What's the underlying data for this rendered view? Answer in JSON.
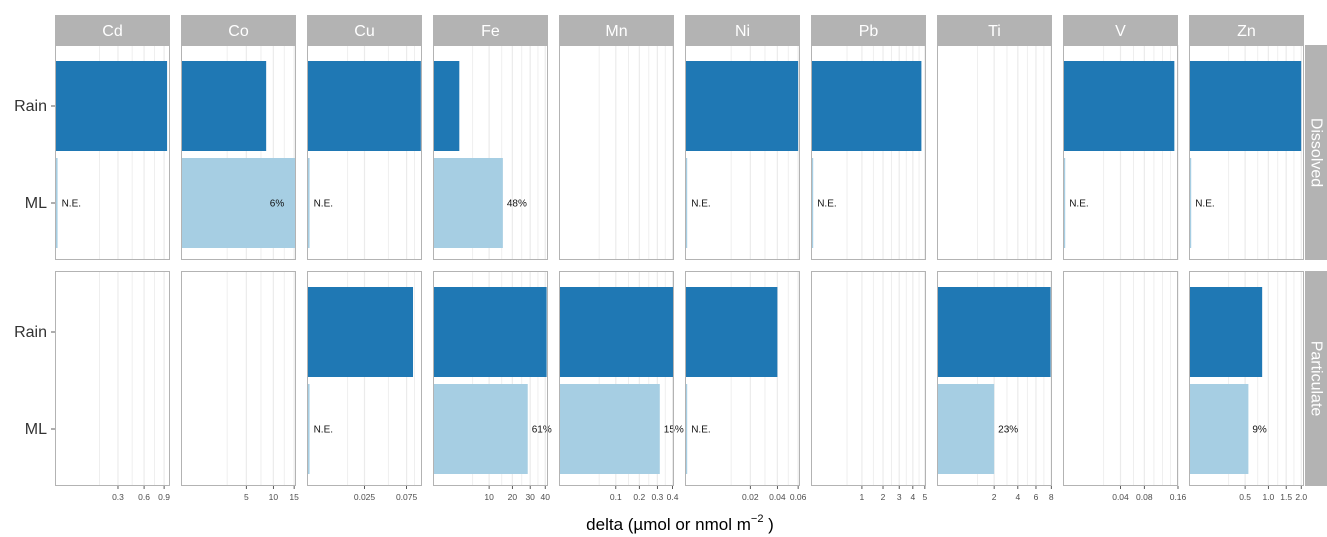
{
  "chart_data": {
    "type": "bar",
    "orientation": "horizontal",
    "facets": {
      "columns": "element",
      "rows": "fraction"
    },
    "x_scale": "sqrt",
    "xlabel_main": "delta (µmol or nmol m",
    "xlabel_sup": "−2",
    "xlabel_end": " )",
    "grid": "vertical",
    "legend": "none",
    "categories": [
      "Rain",
      "ML"
    ],
    "colors": {
      "Rain": "#1f78b4",
      "ML": "#a6cee3",
      "strip": "#b3b3b3",
      "grid": "#ebebeb",
      "panel_border": "#b3b3b3"
    },
    "rows": [
      "Dissolved",
      "Particulate"
    ],
    "columns": [
      {
        "name": "Cd",
        "xlim": [
          0,
          1.0
        ],
        "ticks": [
          0.3,
          0.6,
          0.9
        ],
        "minor": [
          0.15,
          0.45,
          0.75
        ],
        "tick_labels": [
          "0.3",
          "0.6",
          "0.9"
        ],
        "panels": {
          "Dissolved": {
            "Rain": 0.95,
            "ML": 0.0005,
            "ML_label": "N.E."
          },
          "Particulate": null
        }
      },
      {
        "name": "Co",
        "xlim": [
          0,
          15.5
        ],
        "ticks": [
          5,
          10,
          15
        ],
        "minor": [
          2.5,
          7.5,
          12.5
        ],
        "tick_labels": [
          "5",
          "10",
          "15"
        ],
        "panels": {
          "Dissolved": {
            "Rain": 8.5,
            "ML": 15.3,
            "ML_label": "6%",
            "ML_label_inside": true
          },
          "Particulate": null
        }
      },
      {
        "name": "Cu",
        "xlim": [
          0,
          0.1
        ],
        "ticks": [
          0.025,
          0.075
        ],
        "minor": [
          0.0125,
          0.05,
          0.0875
        ],
        "tick_labels": [
          "0.025",
          "0.075"
        ],
        "panels": {
          "Dissolved": {
            "Rain": 0.098,
            "ML": 5e-05,
            "ML_label": "N.E."
          },
          "Particulate": {
            "Rain": 0.085,
            "ML": 5e-05,
            "ML_label": "N.E."
          }
        }
      },
      {
        "name": "Fe",
        "xlim": [
          0,
          42
        ],
        "ticks": [
          10,
          20,
          30,
          40
        ],
        "minor": [
          5,
          15,
          25,
          35
        ],
        "tick_labels": [
          "10",
          "20",
          "30",
          "40"
        ],
        "panels": {
          "Dissolved": {
            "Rain": 2.2,
            "ML": 15.5,
            "ML_label": "48%"
          },
          "Particulate": {
            "Rain": 41,
            "ML": 28.5,
            "ML_label": "61%"
          }
        }
      },
      {
        "name": "Mn",
        "xlim": [
          0,
          0.41
        ],
        "ticks": [
          0.1,
          0.2,
          0.3,
          0.4
        ],
        "minor": [
          0.05,
          0.15,
          0.25,
          0.35
        ],
        "tick_labels": [
          "0.1",
          "0.2",
          "0.3",
          "0.4"
        ],
        "panels": {
          "Dissolved": null,
          "Particulate": {
            "Rain": 0.41,
            "ML": 0.315,
            "ML_label": "15%"
          }
        }
      },
      {
        "name": "Ni",
        "xlim": [
          0,
          0.062
        ],
        "ticks": [
          0.02,
          0.04,
          0.06
        ],
        "minor": [
          0.01,
          0.03,
          0.05
        ],
        "tick_labels": [
          "0.02",
          "0.04",
          "0.06"
        ],
        "panels": {
          "Dissolved": {
            "Rain": 0.06,
            "ML": 2e-05,
            "ML_label": "N.E."
          },
          "Particulate": {
            "Rain": 0.04,
            "ML": 2e-05,
            "ML_label": "N.E."
          }
        }
      },
      {
        "name": "Pb",
        "xlim": [
          0,
          5.1
        ],
        "ticks": [
          1,
          2,
          3,
          4,
          5
        ],
        "minor": [
          0.5,
          1.5,
          2.5,
          3.5,
          4.5
        ],
        "tick_labels": [
          "1",
          "2",
          "3",
          "4",
          "5"
        ],
        "panels": {
          "Dissolved": {
            "Rain": 4.7,
            "ML": 0.001,
            "ML_label": "N.E."
          },
          "Particulate": null
        }
      },
      {
        "name": "Ti",
        "xlim": [
          0,
          8.1
        ],
        "ticks": [
          2,
          4,
          6,
          8
        ],
        "minor": [
          1,
          3,
          5,
          7
        ],
        "tick_labels": [
          "2",
          "4",
          "6",
          "8"
        ],
        "panels": {
          "Dissolved": null,
          "Particulate": {
            "Rain": 7.9,
            "ML": 2.0,
            "ML_label": "23%"
          }
        }
      },
      {
        "name": "V",
        "xlim": [
          0,
          0.16
        ],
        "ticks": [
          0.04,
          0.08,
          0.16
        ],
        "minor": [
          0.02,
          0.06,
          0.1,
          0.12,
          0.14
        ],
        "tick_labels": [
          "0.04",
          "0.08",
          "0.16"
        ],
        "panels": {
          "Dissolved": {
            "Rain": 0.15,
            "ML": 3e-05,
            "ML_label": "N.E."
          },
          "Particulate": null
        }
      },
      {
        "name": "Zn",
        "xlim": [
          0,
          2.1
        ],
        "ticks": [
          0.5,
          1.0,
          1.5,
          2.0
        ],
        "minor": [
          0.25,
          0.75,
          1.25,
          1.75
        ],
        "tick_labels": [
          "0.5",
          "1.0",
          "1.5",
          "2.0"
        ],
        "panels": {
          "Dissolved": {
            "Rain": 2.0,
            "ML": 0.0005,
            "ML_label": "N.E."
          },
          "Particulate": {
            "Rain": 0.85,
            "ML": 0.56,
            "ML_label": "9%"
          }
        }
      }
    ]
  }
}
